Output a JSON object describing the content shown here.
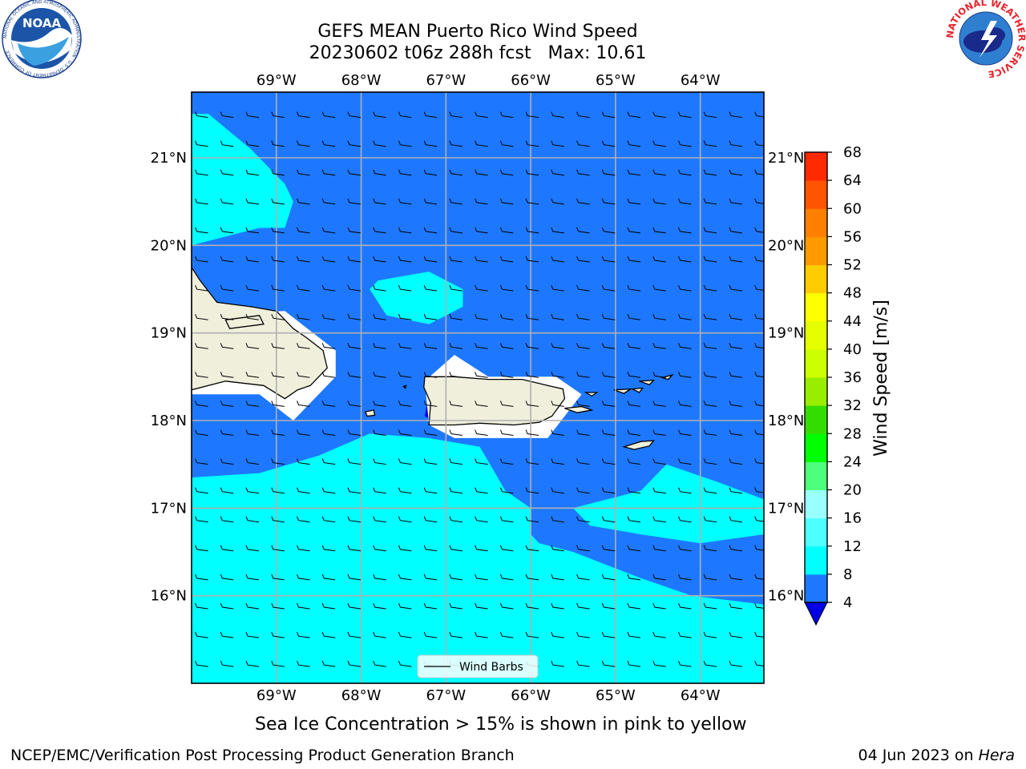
{
  "title": {
    "line1": "GEFS MEAN Puerto Rico Wind Speed",
    "line2": "20230602 t06z 288h fcst   Max: 10.61"
  },
  "logos": {
    "left": {
      "text": "NOAA",
      "ring": "NATIONAL OCEANIC AND ATMOSPHERIC ADMINISTRATION · U.S. DEPARTMENT OF COMMERCE"
    },
    "right": {
      "ring": "NATIONAL WEATHER SERVICE"
    }
  },
  "map": {
    "lon_range": [
      -70,
      -63.25
    ],
    "lat_range": [
      15,
      21.75
    ],
    "lon_ticks": [
      {
        "value": -69,
        "label": "69°W"
      },
      {
        "value": -68,
        "label": "68°W"
      },
      {
        "value": -67,
        "label": "67°W"
      },
      {
        "value": -66,
        "label": "66°W"
      },
      {
        "value": -65,
        "label": "65°W"
      },
      {
        "value": -64,
        "label": "64°W"
      }
    ],
    "lat_ticks": [
      {
        "value": 21,
        "label": "21°N"
      },
      {
        "value": 20,
        "label": "20°N"
      },
      {
        "value": 19,
        "label": "19°N"
      },
      {
        "value": 18,
        "label": "18°N"
      },
      {
        "value": 17,
        "label": "17°N"
      },
      {
        "value": 16,
        "label": "16°N"
      }
    ],
    "gridlines": true,
    "background_fill": "#1e78ff",
    "zones": [
      {
        "name": "wind-8-12-northwest",
        "color": "#00ffff",
        "points": [
          [
            -70,
            21.5
          ],
          [
            -69.8,
            21.5
          ],
          [
            -69.3,
            21.1
          ],
          [
            -68.9,
            20.7
          ],
          [
            -68.8,
            20.5
          ],
          [
            -68.9,
            20.2
          ],
          [
            -69.2,
            20.2
          ],
          [
            -69.6,
            20.1
          ],
          [
            -70,
            20
          ]
        ]
      },
      {
        "name": "wind-8-12-mona-passage",
        "color": "#00ffff",
        "points": [
          [
            -67.9,
            19.5
          ],
          [
            -67.8,
            19.6
          ],
          [
            -67.2,
            19.7
          ],
          [
            -66.8,
            19.5
          ],
          [
            -66.8,
            19.3
          ],
          [
            -67.2,
            19.1
          ],
          [
            -67.7,
            19.2
          ]
        ]
      },
      {
        "name": "wind-8-12-south",
        "color": "#00ffff",
        "points": [
          [
            -70,
            17.35
          ],
          [
            -69.2,
            17.4
          ],
          [
            -68.5,
            17.6
          ],
          [
            -67.9,
            17.85
          ],
          [
            -67.2,
            17.8
          ],
          [
            -66.6,
            17.7
          ],
          [
            -66.3,
            17.2
          ],
          [
            -66,
            17
          ],
          [
            -65.5,
            17
          ],
          [
            -64.7,
            17.2
          ],
          [
            -64.4,
            17.5
          ],
          [
            -64.1,
            17.4
          ],
          [
            -63.8,
            17.3
          ],
          [
            -63.25,
            17.1
          ],
          [
            -63.25,
            15
          ],
          [
            -70,
            15
          ]
        ]
      },
      {
        "name": "wind-4-8-south-band",
        "color": "#1e78ff",
        "points": [
          [
            -66,
            17
          ],
          [
            -65.5,
            17
          ],
          [
            -65.3,
            16.8
          ],
          [
            -64.7,
            16.7
          ],
          [
            -64,
            16.6
          ],
          [
            -63.25,
            16.7
          ],
          [
            -63.25,
            15.9
          ],
          [
            -64.1,
            16.0
          ],
          [
            -64.7,
            16.2
          ],
          [
            -65.5,
            16.5
          ],
          [
            -65.9,
            16.6
          ],
          [
            -66,
            16.7
          ]
        ]
      },
      {
        "name": "wind-below-4-pocket",
        "color": "#0000e6",
        "points": [
          [
            -67.25,
            18.05
          ],
          [
            -67.2,
            18.3
          ],
          [
            -67.1,
            18.25
          ],
          [
            -67.15,
            18.0
          ]
        ]
      }
    ],
    "masks": [
      {
        "name": "hispaniola-mask",
        "points": [
          [
            -70,
            19.2
          ],
          [
            -68.9,
            19.25
          ],
          [
            -68.7,
            19.1
          ],
          [
            -68.3,
            18.8
          ],
          [
            -68.3,
            18.5
          ],
          [
            -68.6,
            18.2
          ],
          [
            -68.8,
            18.0
          ],
          [
            -69.2,
            18.3
          ],
          [
            -70,
            18.3
          ]
        ]
      },
      {
        "name": "puerto-rico-mask",
        "points": [
          [
            -67.25,
            18.45
          ],
          [
            -66.9,
            18.75
          ],
          [
            -66.5,
            18.5
          ],
          [
            -65.7,
            18.5
          ],
          [
            -65.4,
            18.3
          ],
          [
            -65.8,
            17.8
          ],
          [
            -66.9,
            17.8
          ],
          [
            -67.2,
            17.95
          ]
        ]
      }
    ],
    "land_color": "#efefdc",
    "land": [
      {
        "name": "hispaniola",
        "points": [
          [
            -70,
            19.75
          ],
          [
            -69.9,
            19.6
          ],
          [
            -69.7,
            19.35
          ],
          [
            -69.3,
            19.3
          ],
          [
            -69.0,
            19.25
          ],
          [
            -68.8,
            19.05
          ],
          [
            -68.65,
            18.95
          ],
          [
            -68.45,
            18.8
          ],
          [
            -68.4,
            18.6
          ],
          [
            -68.6,
            18.4
          ],
          [
            -68.75,
            18.35
          ],
          [
            -68.9,
            18.25
          ],
          [
            -69.15,
            18.4
          ],
          [
            -69.6,
            18.45
          ],
          [
            -70,
            18.35
          ]
        ]
      },
      {
        "name": "samana-peninsula",
        "points": [
          [
            -69.6,
            19.15
          ],
          [
            -69.2,
            19.2
          ],
          [
            -69.15,
            19.1
          ],
          [
            -69.55,
            19.05
          ]
        ]
      },
      {
        "name": "puerto-rico",
        "points": [
          [
            -67.25,
            18.5
          ],
          [
            -67.1,
            18.5
          ],
          [
            -66.9,
            18.5
          ],
          [
            -66.5,
            18.47
          ],
          [
            -66.1,
            18.47
          ],
          [
            -65.8,
            18.4
          ],
          [
            -65.62,
            18.36
          ],
          [
            -65.6,
            18.25
          ],
          [
            -65.75,
            18.05
          ],
          [
            -65.9,
            17.98
          ],
          [
            -66.2,
            17.95
          ],
          [
            -66.6,
            17.97
          ],
          [
            -66.9,
            17.95
          ],
          [
            -67.2,
            17.95
          ],
          [
            -67.18,
            18.2
          ],
          [
            -67.26,
            18.38
          ]
        ]
      },
      {
        "name": "vieques",
        "points": [
          [
            -65.6,
            18.14
          ],
          [
            -65.4,
            18.16
          ],
          [
            -65.28,
            18.12
          ],
          [
            -65.45,
            18.09
          ]
        ]
      },
      {
        "name": "culebra",
        "points": [
          [
            -65.35,
            18.32
          ],
          [
            -65.22,
            18.32
          ],
          [
            -65.28,
            18.28
          ]
        ]
      },
      {
        "name": "st-thomas",
        "points": [
          [
            -65.02,
            18.35
          ],
          [
            -64.82,
            18.36
          ],
          [
            -64.9,
            18.31
          ]
        ]
      },
      {
        "name": "st-john",
        "points": [
          [
            -64.8,
            18.36
          ],
          [
            -64.68,
            18.37
          ],
          [
            -64.72,
            18.32
          ]
        ]
      },
      {
        "name": "tortola",
        "points": [
          [
            -64.72,
            18.45
          ],
          [
            -64.55,
            18.46
          ],
          [
            -64.6,
            18.41
          ]
        ]
      },
      {
        "name": "virgin-gorda",
        "points": [
          [
            -64.45,
            18.49
          ],
          [
            -64.33,
            18.52
          ],
          [
            -64.38,
            18.47
          ]
        ]
      },
      {
        "name": "st-croix",
        "points": [
          [
            -64.9,
            17.7
          ],
          [
            -64.7,
            17.76
          ],
          [
            -64.55,
            17.77
          ],
          [
            -64.6,
            17.71
          ],
          [
            -64.78,
            17.67
          ]
        ]
      },
      {
        "name": "mona-island",
        "points": [
          [
            -67.95,
            18.1
          ],
          [
            -67.85,
            18.12
          ],
          [
            -67.84,
            18.06
          ],
          [
            -67.93,
            18.05
          ]
        ]
      },
      {
        "name": "desecheo",
        "points": [
          [
            -67.5,
            18.39
          ],
          [
            -67.47,
            18.4
          ],
          [
            -67.48,
            18.37
          ]
        ]
      }
    ],
    "wind_barbs": {
      "lon_start": -69.9,
      "lat_start": 15.2,
      "step_lon": 0.3,
      "step_lat": 0.33
    }
  },
  "legend": {
    "label": "Wind Barbs"
  },
  "colorbar": {
    "label": "Wind Speed [m/s]",
    "levels": [
      4,
      8,
      12,
      16,
      20,
      24,
      28,
      32,
      36,
      40,
      44,
      48,
      52,
      56,
      60,
      64,
      68
    ],
    "colors": [
      "#1e78ff",
      "#00ffff",
      "#4dffff",
      "#99ffff",
      "#4dff7a",
      "#00ff00",
      "#33dd00",
      "#99ee00",
      "#ccff00",
      "#e6ff00",
      "#ffff00",
      "#ffcc00",
      "#ff9900",
      "#ff7f00",
      "#ff5500",
      "#ff2a00",
      "#ff0000"
    ],
    "under_color": "#0000e6"
  },
  "subtitle": "Sea Ice Concentration > 15% is shown in pink to yellow",
  "footer": {
    "left": "NCEP/EMC/Verification Post Processing Product Generation Branch",
    "date": "04 Jun 2023 on ",
    "host": "Hera"
  }
}
